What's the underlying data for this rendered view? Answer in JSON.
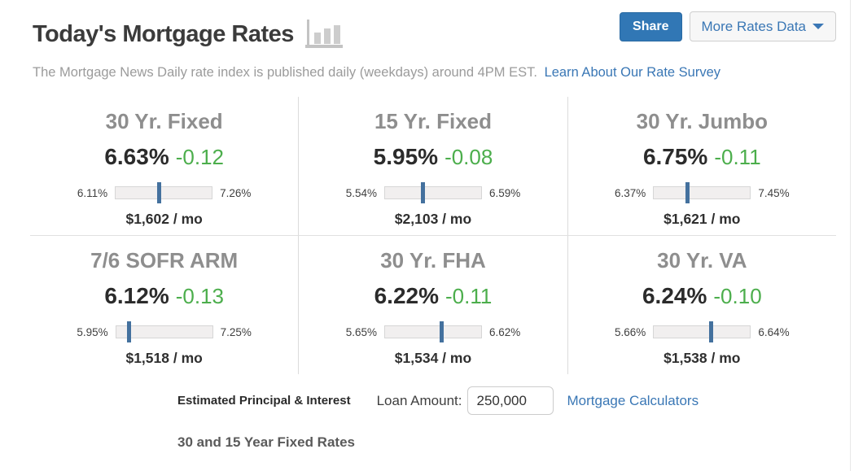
{
  "header": {
    "title": "Today's Mortgage Rates",
    "share_label": "Share",
    "more_rates_label": "More Rates Data",
    "subtitle": "The Mortgage News Daily rate index is published daily (weekdays) around 4PM EST.",
    "survey_link": "Learn About Our Rate Survey"
  },
  "rates": [
    {
      "label": "30 Yr. Fixed",
      "rate_display": "6.63%",
      "change_display": "-0.12",
      "low_display": "6.11%",
      "high_display": "7.26%",
      "payment_display": "$1,602 / mo",
      "rate": 6.63,
      "low": 6.11,
      "high": 7.26
    },
    {
      "label": "15 Yr. Fixed",
      "rate_display": "5.95%",
      "change_display": "-0.08",
      "low_display": "5.54%",
      "high_display": "6.59%",
      "payment_display": "$2,103 / mo",
      "rate": 5.95,
      "low": 5.54,
      "high": 6.59
    },
    {
      "label": "30 Yr. Jumbo",
      "rate_display": "6.75%",
      "change_display": "-0.11",
      "low_display": "6.37%",
      "high_display": "7.45%",
      "payment_display": "$1,621 / mo",
      "rate": 6.75,
      "low": 6.37,
      "high": 7.45
    },
    {
      "label": "7/6 SOFR ARM",
      "rate_display": "6.12%",
      "change_display": "-0.13",
      "low_display": "5.95%",
      "high_display": "7.25%",
      "payment_display": "$1,518 / mo",
      "rate": 6.12,
      "low": 5.95,
      "high": 7.25
    },
    {
      "label": "30 Yr. FHA",
      "rate_display": "6.22%",
      "change_display": "-0.11",
      "low_display": "5.65%",
      "high_display": "6.62%",
      "payment_display": "$1,534 / mo",
      "rate": 6.22,
      "low": 5.65,
      "high": 6.62
    },
    {
      "label": "30 Yr. VA",
      "rate_display": "6.24%",
      "change_display": "-0.10",
      "low_display": "5.66%",
      "high_display": "6.64%",
      "payment_display": "$1,538 / mo",
      "rate": 6.24,
      "low": 5.66,
      "high": 6.64
    }
  ],
  "footer": {
    "estimated_label": "Estimated Principal & Interest",
    "loan_amount_label": "Loan Amount:",
    "loan_amount_value": "250,000",
    "calculators_link": "Mortgage Calculators",
    "next_section_title": "30 and 15 Year Fixed Rates"
  },
  "colors": {
    "accent_blue": "#3177b5",
    "link_blue": "#3a77b5",
    "change_green": "#4cae4c",
    "marker_blue": "#44719e",
    "title_gray": "#8e8e8e"
  }
}
